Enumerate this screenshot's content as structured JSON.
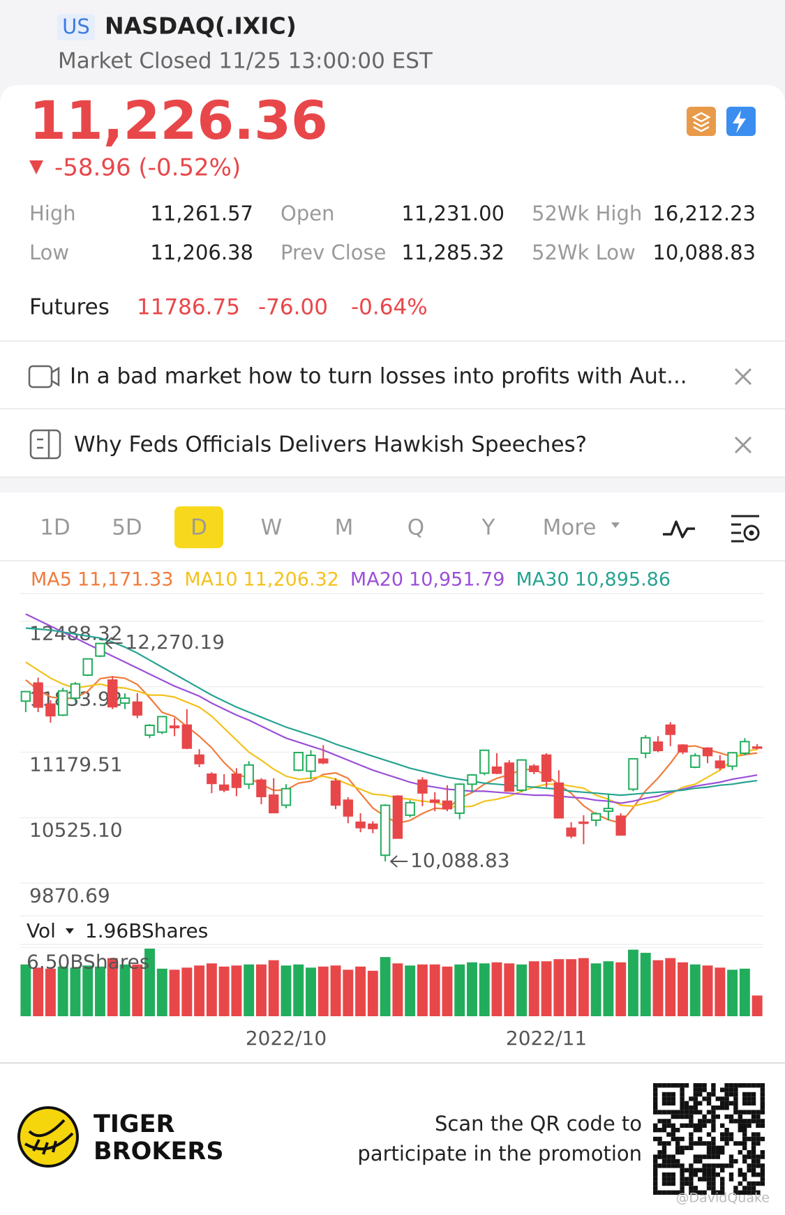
{
  "header": {
    "market": "US",
    "symbol": "NASDAQ(.IXIC)",
    "status": "Market Closed 11/25 13:00:00 EST"
  },
  "quote": {
    "price": "11,226.36",
    "change": "-58.96 (-0.52%)"
  },
  "stats": [
    {
      "label": "High",
      "value": "11,261.57"
    },
    {
      "label": "Open",
      "value": "11,231.00"
    },
    {
      "label": "52Wk High",
      "value": "16,212.23"
    },
    {
      "label": "Low",
      "value": "11,206.38"
    },
    {
      "label": "Prev Close",
      "value": "11,285.32"
    },
    {
      "label": "52Wk Low",
      "value": "10,088.83"
    }
  ],
  "futures": {
    "label": "Futures",
    "price": "11786.75",
    "change": "-76.00",
    "percent": "-0.64%"
  },
  "news": [
    "In a bad market how to turn losses into profits with Aut...",
    "Why Feds Officials Delivers Hawkish Speeches?"
  ],
  "tabs": [
    "1D",
    "5D",
    "D",
    "W",
    "M",
    "Q",
    "Y",
    "More"
  ],
  "active_tab": "D",
  "chart_data": {
    "type": "candlestick",
    "categories": [
      null,
      null,
      null,
      null,
      null,
      null,
      null,
      null,
      null,
      null,
      null,
      null,
      null,
      null,
      null,
      null,
      null,
      null,
      null,
      null,
      null,
      "2022/10",
      null,
      null,
      null,
      null,
      null,
      null,
      null,
      null,
      null,
      null,
      null,
      null,
      null,
      null,
      null,
      null,
      null,
      null,
      null,
      null,
      "2022/11",
      null,
      null,
      null,
      null,
      null,
      null,
      null,
      null,
      null,
      null,
      null,
      null,
      null,
      null,
      null,
      null,
      null
    ],
    "open": [
      11690,
      11870,
      11660,
      11550,
      11720,
      11950,
      12140,
      11900,
      11670,
      11680,
      11350,
      11380,
      11440,
      11450,
      11150,
      10960,
      10850,
      10960,
      10860,
      10900,
      10750,
      10650,
      11000,
      10990,
      11110,
      10890,
      10700,
      10480,
      10460,
      10150,
      10740,
      10550,
      10900,
      10700,
      10690,
      10570,
      10860,
      10970,
      11030,
      11070,
      10800,
      11040,
      11150,
      10870,
      10420,
      10480,
      10500,
      10590,
      10540,
      10810,
      11170,
      11280,
      11450,
      11250,
      11030,
      11220,
      11090,
      11040,
      11170,
      11231
    ],
    "high": [
      11790,
      11925,
      11700,
      11822,
      11880,
      12115,
      12270.19,
      11940,
      11768,
      11770,
      11460,
      11540,
      11520,
      11610,
      11210,
      10980,
      10960,
      11020,
      11090,
      10920,
      10920,
      10860,
      11180,
      11200,
      11250,
      10920,
      10730,
      10570,
      10490,
      10660,
      10750,
      10700,
      10930,
      10780,
      10850,
      10870,
      10960,
      11200,
      11170,
      11100,
      11110,
      11060,
      11170,
      11000,
      10480,
      10550,
      10580,
      10760,
      10570,
      11120,
      11350,
      11340,
      11480,
      11260,
      11170,
      11230,
      11150,
      11180,
      11320,
      11261.57
    ],
    "low": [
      11580,
      11580,
      11475,
      11540,
      11680,
      11940,
      12130,
      11610,
      11610,
      11520,
      11320,
      11360,
      11340,
      11210,
      11030,
      10770,
      10780,
      10740,
      10810,
      10660,
      10570,
      10620,
      10990,
      10910,
      11060,
      10610,
      10470,
      10380,
      10370,
      10088.83,
      10320,
      10530,
      10640,
      10590,
      10590,
      10510,
      10780,
      10950,
      10960,
      10790,
      10780,
      10960,
      10830,
      10520,
      10320,
      10260,
      10440,
      10500,
      10350,
      10790,
      11120,
      11180,
      11240,
      11160,
      11020,
      11070,
      11000,
      11000,
      11150,
      11206.38
    ],
    "close": [
      11785,
      11631,
      11544,
      11792,
      11862,
      12112,
      12266,
      11634,
      11720,
      11552,
      11448,
      11535,
      11425,
      11220,
      11066,
      10868,
      10802,
      10829,
      11052,
      10737,
      10576,
      10815,
      11176,
      11148,
      11074,
      10652,
      10543,
      10426,
      10417,
      10649,
      10321,
      10675,
      10773,
      10680,
      10615,
      10860,
      10952,
      11199,
      10970,
      10792,
      11102,
      10988,
      10890,
      10524,
      10343,
      10476,
      10565,
      10617,
      10353,
      11114,
      11324,
      11197,
      11359,
      11184,
      11145,
      11146,
      11025,
      11174,
      11285.32,
      11226.36
    ],
    "up_color": "#22ad5c",
    "down_color": "#e8474a",
    "ylim": [
      9566,
      12751
    ],
    "yticks": [
      9870.69,
      {
        "value": 10525.1,
        "label": "10525.10"
      },
      11179.51,
      11833.92,
      12488.32
    ],
    "annotations": [
      {
        "at": 6,
        "value": 12270.19,
        "label": "12,270.19"
      },
      {
        "at": 29,
        "value": 10088.83,
        "label": "10,088.83"
      }
    ],
    "ma": [
      {
        "name": "MA5",
        "color": "#f07b3c",
        "last_label": "11,171.33",
        "values": [
          11902,
          11800,
          11732,
          11714,
          11723,
          11788,
          11915,
          11933,
          11919,
          11857,
          11724,
          11578,
          11536,
          11436,
          11339,
          11223,
          11076,
          10957,
          10923,
          10858,
          10799,
          10802,
          10871,
          10890,
          10958,
          10973,
          10919,
          10769,
          10622,
          10537,
          10471,
          10498,
          10567,
          10620,
          10613,
          10721,
          10776,
          10861,
          10919,
          10955,
          11003,
          11010,
          10948,
          10859,
          10769,
          10644,
          10560,
          10505,
          10471,
          10625,
          10795,
          10921,
          11069,
          11236,
          11242,
          11206,
          11172,
          11135,
          11155,
          11171.33
        ]
      },
      {
        "name": "MA10",
        "color": "#f3c21b",
        "last_label": "11,206.32",
        "values": [
          12080,
          12000,
          11920,
          11860,
          11820,
          11840,
          11860,
          11830,
          11820,
          11790,
          11750,
          11750,
          11730,
          11680,
          11630,
          11540,
          11420,
          11300,
          11180,
          11100,
          11010,
          10940,
          10910,
          10920,
          10940,
          10910,
          10860,
          10810,
          10760,
          10750,
          10720,
          10710,
          10690,
          10680,
          10640,
          10630,
          10640,
          10690,
          10710,
          10740,
          10790,
          10830,
          10860,
          10860,
          10840,
          10820,
          10750,
          10710,
          10650,
          10640,
          10670,
          10700,
          10760,
          10830,
          10860,
          10930,
          11000,
          11100,
          11190,
          11206.32
        ]
      },
      {
        "name": "MA20",
        "color": "#9b4fd8",
        "last_label": "10,951.79",
        "values": [
          12560,
          12500,
          12440,
          12380,
          12320,
          12260,
          12200,
          12140,
          12080,
          12020,
          11960,
          11900,
          11840,
          11790,
          11740,
          11670,
          11610,
          11550,
          11500,
          11440,
          11380,
          11320,
          11280,
          11240,
          11200,
          11150,
          11100,
          11050,
          11000,
          10960,
          10920,
          10880,
          10850,
          10830,
          10810,
          10800,
          10790,
          10790,
          10780,
          10770,
          10760,
          10750,
          10750,
          10740,
          10730,
          10720,
          10700,
          10690,
          10670,
          10690,
          10720,
          10740,
          10780,
          10810,
          10840,
          10860,
          10880,
          10910,
          10930,
          10951.79
        ]
      },
      {
        "name": "MA30",
        "color": "#26a391",
        "last_label": "10,895.86",
        "values": [
          12420,
          12410,
          12400,
          12380,
          12360,
          12340,
          12320,
          12280,
          12230,
          12170,
          12100,
          12030,
          11960,
          11890,
          11820,
          11750,
          11690,
          11630,
          11580,
          11530,
          11480,
          11430,
          11390,
          11350,
          11310,
          11260,
          11220,
          11180,
          11140,
          11100,
          11060,
          11020,
          10990,
          10960,
          10930,
          10910,
          10890,
          10870,
          10860,
          10850,
          10840,
          10830,
          10820,
          10810,
          10790,
          10780,
          10770,
          10760,
          10750,
          10760,
          10770,
          10780,
          10790,
          10800,
          10820,
          10830,
          10850,
          10860,
          10880,
          10895.86
        ]
      }
    ],
    "volume": {
      "name": "Vol",
      "last_label": "1.96BShares",
      "ylim": [
        0,
        6.6
      ],
      "yticks": [
        {
          "value": 6.5,
          "label": "6.50BShares"
        }
      ],
      "values": [
        4.9,
        4.6,
        4.5,
        4.7,
        4.6,
        4.8,
        4.7,
        5.5,
        4.9,
        4.9,
        6.4,
        4.5,
        4.4,
        4.6,
        4.8,
        5.0,
        4.7,
        4.8,
        4.9,
        4.9,
        5.3,
        4.8,
        4.9,
        4.6,
        4.7,
        4.8,
        4.4,
        4.7,
        4.3,
        5.6,
        5.0,
        4.8,
        4.9,
        4.9,
        4.7,
        4.9,
        5.1,
        5.0,
        5.1,
        5.0,
        4.9,
        5.2,
        5.2,
        5.4,
        5.4,
        5.5,
        5.0,
        5.2,
        5.1,
        6.3,
        6.0,
        5.3,
        5.5,
        5.1,
        4.9,
        4.8,
        4.6,
        4.4,
        4.5,
        1.96
      ]
    }
  },
  "footer": {
    "brand": [
      "TIGER",
      "BROKERS"
    ],
    "promo": [
      "Scan the QR code to",
      "participate in the promotion"
    ],
    "watermark": "@DavidQuake"
  }
}
